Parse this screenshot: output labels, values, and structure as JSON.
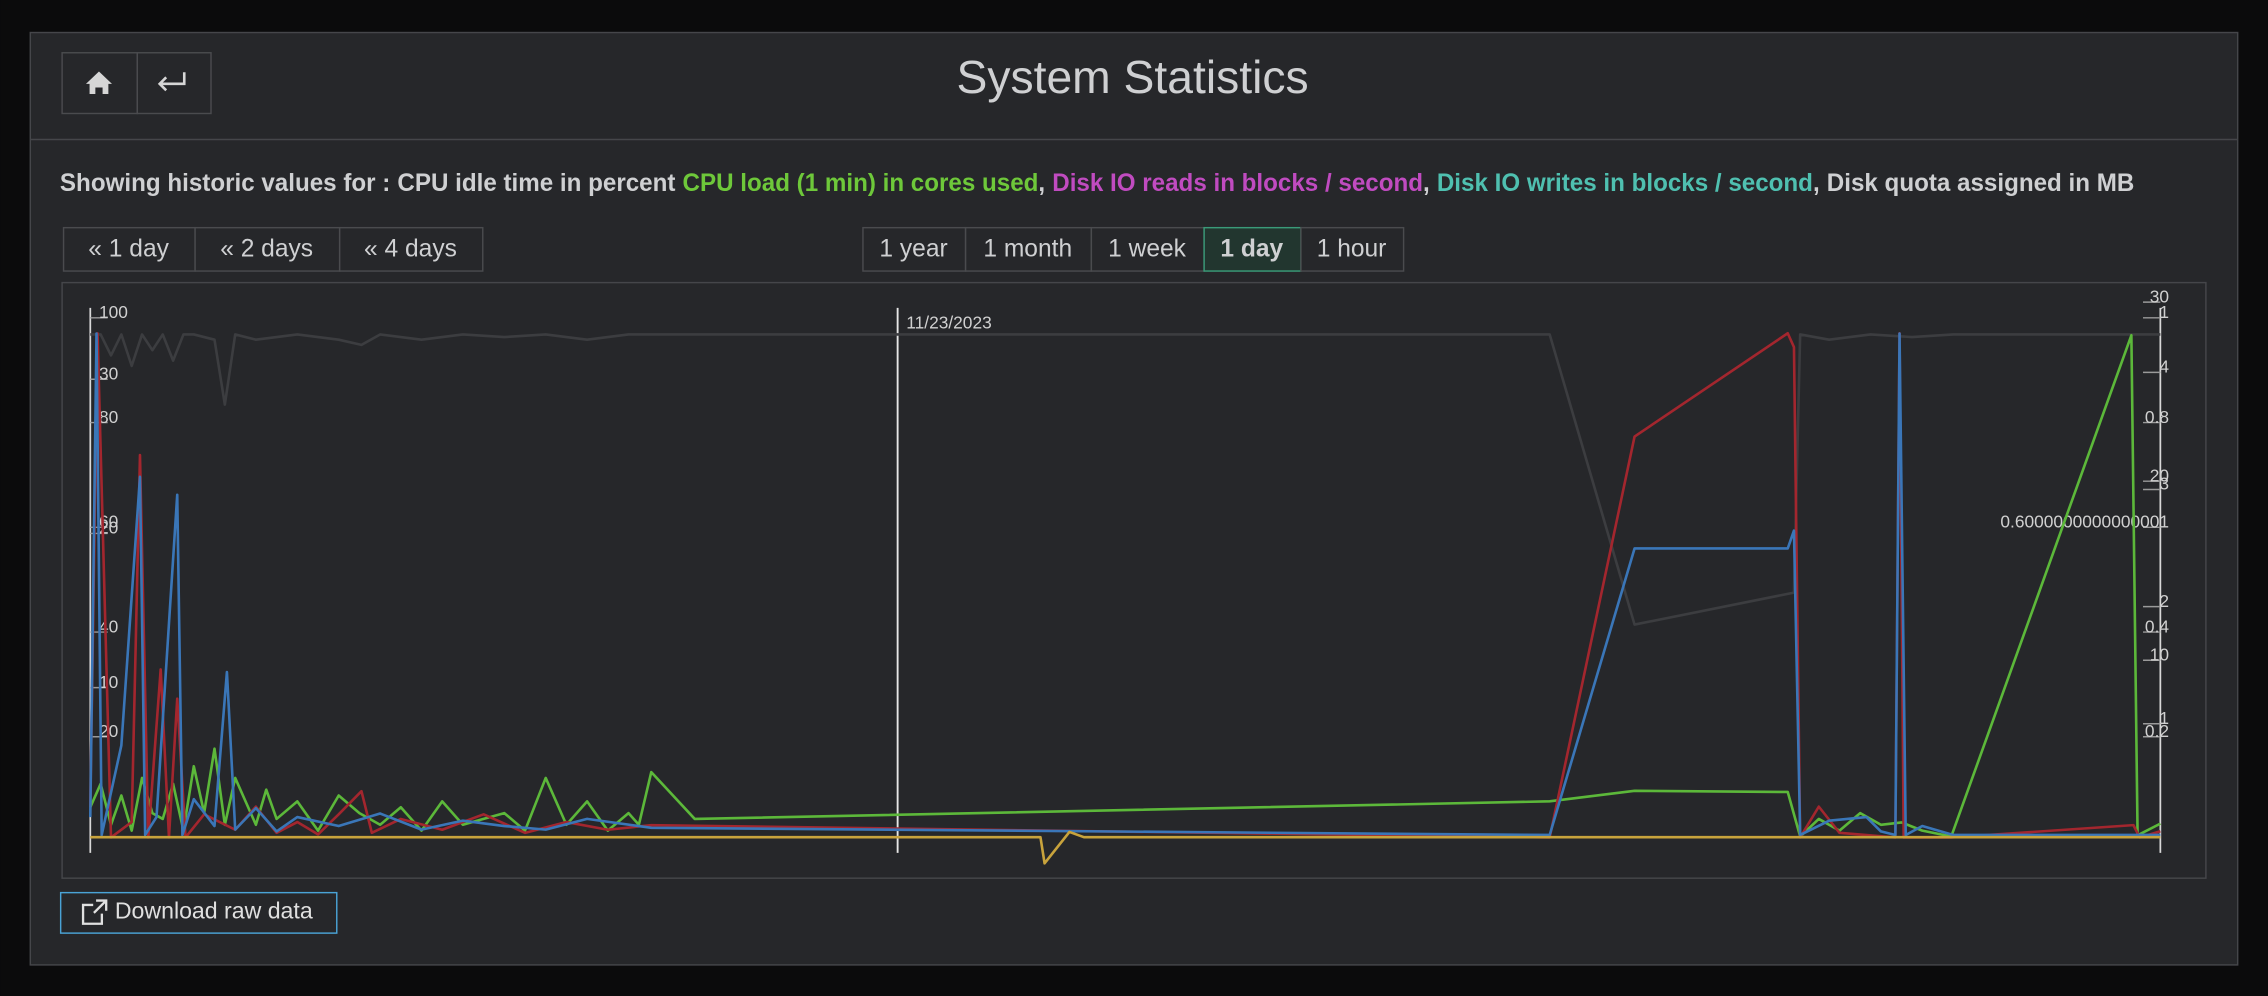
{
  "header": {
    "title": "System Statistics"
  },
  "description": {
    "prefix": "Showing historic values for :",
    "separator": ","
  },
  "range_buttons": {
    "back": [
      "« 1 day",
      "« 2 days",
      "« 4 days"
    ],
    "spans": [
      "1 year",
      "1 month",
      "1 week",
      "1 day",
      "1 hour"
    ],
    "active": 3
  },
  "download": "Download raw data",
  "chart_data": {
    "type": "line",
    "xlim": [
      0,
      100
    ],
    "annotations": [
      {
        "x": 39,
        "label": "11/23/2023"
      }
    ],
    "axes": [
      {
        "side": "left",
        "ylim": [
          -3,
          103
        ],
        "ticks": [
          20,
          40,
          60,
          80,
          100
        ]
      },
      {
        "side": "left",
        "ylim": [
          -1,
          35
        ],
        "ticks": [
          10,
          20,
          30
        ]
      },
      {
        "side": "right",
        "ylim": [
          -1,
          30
        ],
        "ticks": [
          10,
          20,
          30
        ]
      },
      {
        "side": "right",
        "ylim": [
          -0.03,
          1.03
        ],
        "ticks": [
          0.2,
          0.4,
          0.6000000000000001,
          0.8,
          1
        ]
      },
      {
        "side": "right",
        "ylim": [
          -0.14,
          4.6
        ],
        "ticks": [
          1,
          2,
          3,
          4
        ]
      }
    ],
    "series": [
      {
        "name": "CPU idle time in percent",
        "color": "#3c3d40",
        "label_color": "#cfd0d2",
        "axis": 0,
        "x": [
          0,
          0.5,
          1,
          1.5,
          2,
          2.5,
          3,
          3.5,
          4,
          4.5,
          5,
          6,
          6.5,
          7,
          8,
          10,
          12,
          13.1,
          14,
          16,
          18,
          20,
          22,
          24,
          26,
          28,
          30,
          40,
          50,
          60,
          70.5,
          74.6,
          82.3,
          82.6,
          84,
          86,
          88,
          90,
          95,
          100
        ],
        "values": [
          96,
          96,
          92,
          96,
          90,
          96,
          93,
          96,
          91,
          96,
          96,
          95,
          82.6,
          96,
          95,
          96,
          95,
          94,
          96,
          95,
          96,
          95.5,
          96,
          95,
          96,
          96,
          96,
          96,
          96,
          96,
          96,
          40.6,
          46.7,
          96,
          95,
          96,
          95.5,
          96,
          96,
          96
        ]
      },
      {
        "name": "CPU load (1 min) in cores used",
        "color": "#5cb83a",
        "label_color": "#6ec83a",
        "axis": 4,
        "x": [
          0,
          0.5,
          1,
          1.5,
          2,
          2.5,
          3,
          3.5,
          4,
          4.5,
          5,
          5.5,
          6,
          6.5,
          7,
          7.5,
          8,
          8.5,
          9,
          10,
          11,
          12,
          13,
          14,
          15,
          16,
          17,
          18,
          19,
          20,
          21,
          22,
          23,
          24,
          25,
          26,
          26.5,
          27.1,
          29.2,
          70.5,
          74.6,
          82,
          82.6,
          83.5,
          84.5,
          85.5,
          86.5,
          87.5,
          88.5,
          89.9,
          98.6,
          98.9,
          100
        ],
        "values": [
          0.25,
          0.45,
          0.1,
          0.35,
          0.05,
          0.5,
          0.2,
          0.15,
          0.45,
          0.05,
          0.6,
          0.2,
          0.75,
          0.1,
          0.5,
          0.3,
          0.1,
          0.4,
          0.15,
          0.3,
          0.05,
          0.35,
          0.2,
          0.1,
          0.25,
          0.05,
          0.3,
          0.1,
          0.15,
          0.2,
          0.05,
          0.5,
          0.1,
          0.3,
          0.05,
          0.2,
          0.1,
          0.55,
          0.15,
          0.3,
          0.39,
          0.38,
          0,
          0.15,
          0.05,
          0.2,
          0.1,
          0.12,
          0.05,
          0,
          4.28,
          0.01,
          0.11
        ]
      },
      {
        "name": "Disk IO reads in blocks / second",
        "color": "#a3262e",
        "label_color": "#c04bc0",
        "axis": 1,
        "x": [
          0,
          0.35,
          1,
          2,
          2.4,
          2.8,
          3.4,
          3.8,
          4.2,
          4.6,
          5.5,
          7,
          8,
          9,
          10,
          11,
          12,
          13.1,
          13.6,
          15,
          17,
          19,
          21,
          23,
          25,
          27.1,
          70.5,
          74.6,
          82,
          82.3,
          82.6,
          83.5,
          84.5,
          87.2,
          87.4,
          87.6,
          89.9,
          98.7,
          99,
          100
        ],
        "values": [
          2,
          32.7,
          0,
          1,
          24.8,
          0,
          10.9,
          0,
          9,
          0,
          1.5,
          0.5,
          2,
          0.3,
          1,
          0.2,
          1.5,
          3,
          0.3,
          1.2,
          0.5,
          1.5,
          0.3,
          1,
          0.5,
          0.8,
          0,
          26,
          32.7,
          31.8,
          0,
          2,
          0.3,
          0,
          32.7,
          0,
          0,
          0.8,
          0,
          0.4
        ]
      },
      {
        "name": "Disk IO writes in blocks / second",
        "color": "#3a76b8",
        "label_color": "#4fc0b0",
        "axis": 2,
        "x": [
          0,
          0.3,
          0.55,
          1.5,
          2.4,
          2.65,
          3.2,
          4.2,
          4.45,
          5,
          6,
          6.6,
          7,
          8,
          9,
          10,
          12,
          14,
          16,
          18,
          20,
          22,
          24,
          27.1,
          70.5,
          74.6,
          82,
          82.3,
          82.6,
          84,
          85.8,
          86.5,
          87.2,
          87.4,
          87.7,
          88.5,
          90,
          100
        ],
        "values": [
          1,
          28,
          0,
          5,
          20,
          0,
          1,
          19,
          0,
          2,
          0.5,
          9.1,
          0.3,
          1.5,
          0.2,
          1,
          0.5,
          1.2,
          0.3,
          0.8,
          0.5,
          0.3,
          0.9,
          0.4,
          0,
          16,
          16,
          17,
          0,
          0.8,
          1,
          0.2,
          0,
          28,
          0,
          0.5,
          0,
          0
        ]
      },
      {
        "name": "Disk quota assigned in MB",
        "color": "#c8a33c",
        "label_color": "#cfd0d2",
        "axis": 3,
        "x": [
          0,
          45.9,
          46.1,
          47.3,
          48,
          100
        ],
        "values": [
          0,
          0,
          -0.05,
          0.01,
          0,
          0
        ]
      }
    ]
  }
}
